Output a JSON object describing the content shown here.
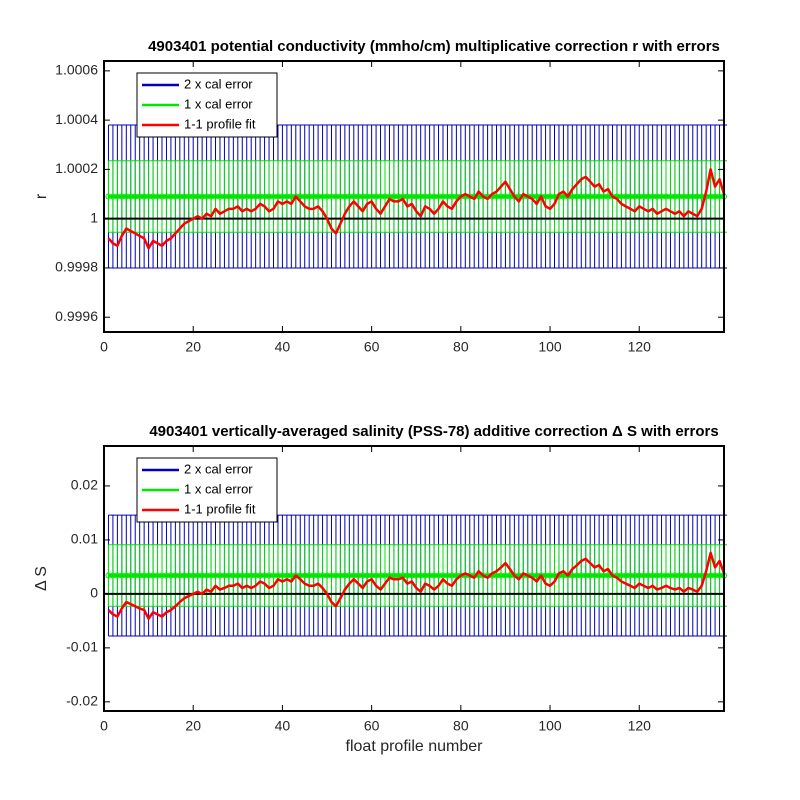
{
  "chart_data": [
    {
      "type": "line",
      "title": "4903401 potential conductivity (mmho/cm) multiplicative correction r with errors",
      "ylabel": "r",
      "legend": "northwest",
      "hline": 1,
      "xlim": [
        0,
        139
      ],
      "xticks": [
        0,
        20,
        40,
        60,
        80,
        100,
        120
      ],
      "ylim": [
        0.99954,
        1.00064
      ],
      "yticks": [
        0.9996,
        0.9998,
        1,
        1.0002,
        1.0004,
        1.0006
      ],
      "x": [
        1,
        2,
        3,
        4,
        5,
        6,
        7,
        8,
        9,
        10,
        11,
        12,
        13,
        14,
        15,
        16,
        17,
        18,
        19,
        20,
        21,
        22,
        23,
        24,
        25,
        26,
        27,
        28,
        29,
        30,
        31,
        32,
        33,
        34,
        35,
        36,
        37,
        38,
        39,
        40,
        41,
        42,
        43,
        44,
        45,
        46,
        47,
        48,
        49,
        50,
        51,
        52,
        53,
        54,
        55,
        56,
        57,
        58,
        59,
        60,
        61,
        62,
        63,
        64,
        65,
        66,
        67,
        68,
        69,
        70,
        71,
        72,
        73,
        74,
        75,
        76,
        77,
        78,
        79,
        80,
        81,
        82,
        83,
        84,
        85,
        86,
        87,
        88,
        89,
        90,
        91,
        92,
        93,
        94,
        95,
        96,
        97,
        98,
        99,
        100,
        101,
        102,
        103,
        104,
        105,
        106,
        107,
        108,
        109,
        110,
        111,
        112,
        113,
        114,
        115,
        116,
        117,
        118,
        119,
        120,
        121,
        122,
        123,
        124,
        125,
        126,
        127,
        128,
        129,
        130,
        131,
        132,
        133,
        134,
        135,
        136,
        137,
        138,
        139
      ],
      "series": [
        {
          "name": "2 x cal error",
          "color": "#0000b4",
          "value": 1.00009,
          "error": 0.00029
        },
        {
          "name": "1 x cal error",
          "color": "#00e600",
          "value": 1.00009,
          "error": 0.000145
        },
        {
          "name": "1-1 profile fit",
          "color": "#ff0000",
          "values": [
            0.99992,
            0.9999,
            0.99989,
            0.99993,
            0.99996,
            0.99995,
            0.99994,
            0.99993,
            0.99992,
            0.99988,
            0.99991,
            0.9999,
            0.99989,
            0.99991,
            0.99992,
            0.99994,
            0.99996,
            0.99998,
            0.99999,
            1,
            1.00001,
            1,
            1.00002,
            1.00001,
            1.00004,
            1.00002,
            1.00003,
            1.00004,
            1.00004,
            1.00005,
            1.00003,
            1.00004,
            1.00003,
            1.00004,
            1.00006,
            1.00005,
            1.00003,
            1.00004,
            1.00007,
            1.00006,
            1.00007,
            1.00006,
            1.00009,
            1.00007,
            1.00005,
            1.00004,
            1.00004,
            1.00005,
            1.00003,
            1,
            0.99996,
            0.99994,
            0.99998,
            1.00002,
            1.00005,
            1.00007,
            1.00005,
            1.00003,
            1.00006,
            1.00007,
            1.00004,
            1.00002,
            1.00005,
            1.00008,
            1.00007,
            1.00007,
            1.00008,
            1.00005,
            1.00006,
            1.00003,
            1.00001,
            1.00005,
            1.00004,
            1.00002,
            1.00004,
            1.00007,
            1.00005,
            1.00004,
            1.00007,
            1.00009,
            1.0001,
            1.00009,
            1.00008,
            1.00011,
            1.00009,
            1.00008,
            1.0001,
            1.00011,
            1.00013,
            1.00015,
            1.00012,
            1.00009,
            1.00007,
            1.0001,
            1.00009,
            1.00008,
            1.00006,
            1.00009,
            1.00005,
            1.00004,
            1.00006,
            1.0001,
            1.00011,
            1.00009,
            1.00012,
            1.00014,
            1.00016,
            1.00017,
            1.00015,
            1.00013,
            1.00014,
            1.00011,
            1.00012,
            1.00009,
            1.00008,
            1.00006,
            1.00005,
            1.00004,
            1.00003,
            1.00005,
            1.00004,
            1.00003,
            1.00004,
            1.00002,
            1.00003,
            1.00004,
            1.00003,
            1.00002,
            1.00003,
            1.00001,
            1.00003,
            1.00002,
            1.00001,
            1.00004,
            1.00011,
            1.0002,
            1.00013,
            1.00016,
            1.0001
          ]
        }
      ]
    },
    {
      "type": "line",
      "title": "4903401 vertically-averaged salinity (PSS-78) additive correction Δ S with errors",
      "ylabel": "Δ S",
      "xlabel": "float profile number",
      "legend": "northwest",
      "hline": 0,
      "xlim": [
        0,
        139
      ],
      "xticks": [
        0,
        20,
        40,
        60,
        80,
        100,
        120
      ],
      "ylim": [
        -0.0217,
        0.0274
      ],
      "yticks": [
        -0.02,
        -0.01,
        0,
        0.01,
        0.02
      ],
      "x": [
        1,
        2,
        3,
        4,
        5,
        6,
        7,
        8,
        9,
        10,
        11,
        12,
        13,
        14,
        15,
        16,
        17,
        18,
        19,
        20,
        21,
        22,
        23,
        24,
        25,
        26,
        27,
        28,
        29,
        30,
        31,
        32,
        33,
        34,
        35,
        36,
        37,
        38,
        39,
        40,
        41,
        42,
        43,
        44,
        45,
        46,
        47,
        48,
        49,
        50,
        51,
        52,
        53,
        54,
        55,
        56,
        57,
        58,
        59,
        60,
        61,
        62,
        63,
        64,
        65,
        66,
        67,
        68,
        69,
        70,
        71,
        72,
        73,
        74,
        75,
        76,
        77,
        78,
        79,
        80,
        81,
        82,
        83,
        84,
        85,
        86,
        87,
        88,
        89,
        90,
        91,
        92,
        93,
        94,
        95,
        96,
        97,
        98,
        99,
        100,
        101,
        102,
        103,
        104,
        105,
        106,
        107,
        108,
        109,
        110,
        111,
        112,
        113,
        114,
        115,
        116,
        117,
        118,
        119,
        120,
        121,
        122,
        123,
        124,
        125,
        126,
        127,
        128,
        129,
        130,
        131,
        132,
        133,
        134,
        135,
        136,
        137,
        138,
        139
      ],
      "series": [
        {
          "name": "2 x cal error",
          "color": "#0000b4",
          "value": 0.0034,
          "error": 0.0112
        },
        {
          "name": "1 x cal error",
          "color": "#00e600",
          "value": 0.0034,
          "error": 0.0057
        },
        {
          "name": "1-1 profile fit",
          "color": "#ff0000",
          "values": [
            -0.003,
            -0.0038,
            -0.0042,
            -0.0027,
            -0.0015,
            -0.0019,
            -0.0023,
            -0.0027,
            -0.003,
            -0.0046,
            -0.0034,
            -0.0038,
            -0.0042,
            -0.0034,
            -0.003,
            -0.0023,
            -0.0015,
            -0.0008,
            -0.0004,
            0,
            0.0004,
            0,
            0.0008,
            0.0004,
            0.0015,
            0.0008,
            0.0011,
            0.0015,
            0.0015,
            0.0019,
            0.0011,
            0.0015,
            0.0011,
            0.0015,
            0.0023,
            0.0019,
            0.0011,
            0.0015,
            0.0027,
            0.0023,
            0.0027,
            0.0023,
            0.0034,
            0.0027,
            0.0019,
            0.0015,
            0.0015,
            0.0019,
            0.0011,
            0,
            -0.0015,
            -0.0023,
            -0.0008,
            0.0008,
            0.0019,
            0.0027,
            0.0019,
            0.0011,
            0.0023,
            0.0027,
            0.0015,
            0.0008,
            0.0019,
            0.003,
            0.0027,
            0.0027,
            0.003,
            0.0019,
            0.0023,
            0.0011,
            0.0004,
            0.0019,
            0.0015,
            0.0008,
            0.0015,
            0.0027,
            0.0019,
            0.0015,
            0.0027,
            0.0034,
            0.0038,
            0.0034,
            0.003,
            0.0042,
            0.0034,
            0.003,
            0.0038,
            0.0042,
            0.0049,
            0.0057,
            0.0046,
            0.0034,
            0.0027,
            0.0038,
            0.0034,
            0.003,
            0.0023,
            0.0034,
            0.0019,
            0.0015,
            0.0023,
            0.0038,
            0.0042,
            0.0034,
            0.0046,
            0.0053,
            0.0061,
            0.0065,
            0.0057,
            0.0049,
            0.0053,
            0.0042,
            0.0046,
            0.0034,
            0.003,
            0.0023,
            0.0019,
            0.0015,
            0.0011,
            0.0019,
            0.0015,
            0.0011,
            0.0015,
            0.0008,
            0.0011,
            0.0015,
            0.0011,
            0.0008,
            0.0011,
            0.0004,
            0.0011,
            0.0008,
            0.0004,
            0.0015,
            0.0042,
            0.0076,
            0.0049,
            0.0061,
            0.0038
          ]
        }
      ]
    }
  ]
}
